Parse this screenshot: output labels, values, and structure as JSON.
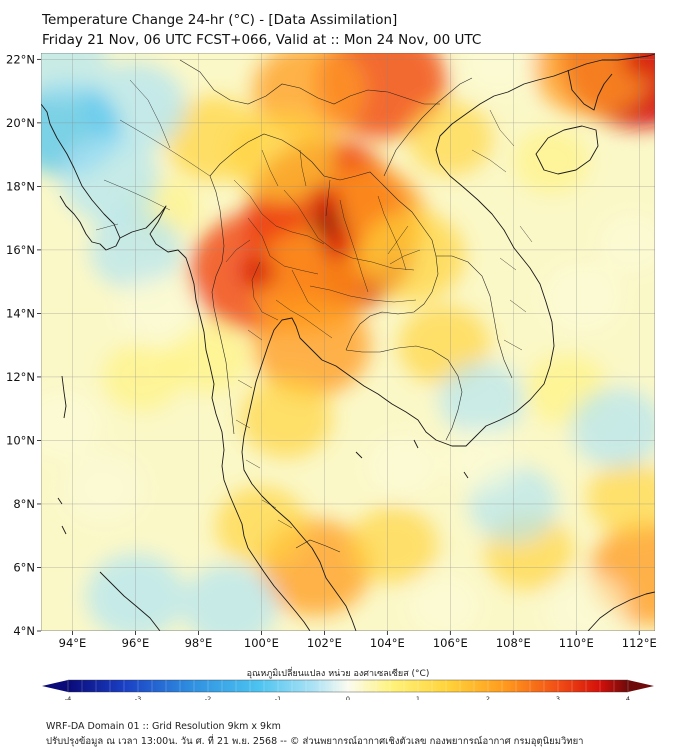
{
  "header": {
    "title": "Temperature Change 24-hr (°C) - [Data Assimilation]",
    "subtitle": "Friday 21 Nov, 06 UTC FCST+066, Valid at :: Mon 24 Nov, 00 UTC"
  },
  "map": {
    "lat_labels": [
      "22°N",
      "20°N",
      "18°N",
      "16°N",
      "14°N",
      "12°N",
      "10°N",
      "8°N",
      "6°N",
      "4°N"
    ],
    "lon_labels": [
      "94°E",
      "96°E",
      "98°E",
      "100°E",
      "102°E",
      "104°E",
      "106°E",
      "108°E",
      "110°E",
      "112°E"
    ],
    "lat_values": [
      22,
      20,
      18,
      16,
      14,
      12,
      10,
      8,
      6,
      4
    ],
    "lon_values": [
      94,
      96,
      98,
      100,
      102,
      104,
      106,
      108,
      110,
      112
    ],
    "extent": {
      "lon_min": 93.0,
      "lon_max": 112.5,
      "lat_min": 4.0,
      "lat_max": 22.2
    },
    "anomalies": [
      {
        "lon": 102.1,
        "lat": 16.9,
        "value": 3.2
      },
      {
        "lon": 102.4,
        "lat": 16.2,
        "value": 3.0
      },
      {
        "lon": 102.0,
        "lat": 17.5,
        "value": 2.7
      },
      {
        "lon": 99.9,
        "lat": 15.3,
        "value": 2.4
      },
      {
        "lon": 101.5,
        "lat": 15.0,
        "value": 1.8
      },
      {
        "lon": 103.3,
        "lat": 17.0,
        "value": 1.9
      },
      {
        "lon": 101.6,
        "lat": 13.0,
        "value": 1.8
      },
      {
        "lon": 103.8,
        "lat": 21.3,
        "value": 2.2
      },
      {
        "lon": 101.5,
        "lat": 21.0,
        "value": 1.6
      },
      {
        "lon": 112.0,
        "lat": 22.0,
        "value": 3.0
      },
      {
        "lon": 110.5,
        "lat": 21.8,
        "value": 1.8
      },
      {
        "lon": 98.5,
        "lat": 19.5,
        "value": 1.2
      },
      {
        "lon": 100.7,
        "lat": 18.9,
        "value": 1.4
      },
      {
        "lon": 104.8,
        "lat": 15.8,
        "value": 1.4
      },
      {
        "lon": 105.8,
        "lat": 13.0,
        "value": 1.0
      },
      {
        "lon": 100.8,
        "lat": 10.7,
        "value": 1.0
      },
      {
        "lon": 101.7,
        "lat": 6.0,
        "value": 1.6
      },
      {
        "lon": 100.0,
        "lat": 7.3,
        "value": 1.0
      },
      {
        "lon": 104.2,
        "lat": 6.7,
        "value": 0.9
      },
      {
        "lon": 108.5,
        "lat": 6.5,
        "value": 0.9
      },
      {
        "lon": 112.3,
        "lat": 5.8,
        "value": 1.8
      },
      {
        "lon": 111.7,
        "lat": 8.2,
        "value": 0.8
      },
      {
        "lon": 109.7,
        "lat": 11.6,
        "value": 0.7
      },
      {
        "lon": 98.3,
        "lat": 12.6,
        "value": 0.7
      },
      {
        "lon": 96.2,
        "lat": 12.0,
        "value": 0.6
      },
      {
        "lon": 96.9,
        "lat": 17.3,
        "value": 0.4
      },
      {
        "lon": 106.0,
        "lat": 19.5,
        "value": 0.8
      },
      {
        "lon": 109.2,
        "lat": 18.8,
        "value": 0.5
      },
      {
        "lon": 96.0,
        "lat": 20.5,
        "value": -1.3
      },
      {
        "lon": 93.8,
        "lat": 19.8,
        "value": -1.5
      },
      {
        "lon": 95.2,
        "lat": 18.2,
        "value": -1.2
      },
      {
        "lon": 96.0,
        "lat": 16.0,
        "value": -1.0
      },
      {
        "lon": 93.7,
        "lat": 22.0,
        "value": -0.9
      },
      {
        "lon": 96.7,
        "lat": 14.1,
        "value": -0.7
      },
      {
        "lon": 111.3,
        "lat": 10.4,
        "value": -1.0
      },
      {
        "lon": 107.0,
        "lat": 11.3,
        "value": -0.8
      },
      {
        "lon": 108.0,
        "lat": 8.0,
        "value": -0.9
      },
      {
        "lon": 107.0,
        "lat": 9.4,
        "value": -0.5
      },
      {
        "lon": 104.5,
        "lat": 9.2,
        "value": -0.4
      },
      {
        "lon": 96.0,
        "lat": 5.1,
        "value": -1.2
      },
      {
        "lon": 99.0,
        "lat": 4.8,
        "value": -1.1
      },
      {
        "lon": 95.0,
        "lat": 8.5,
        "value": -0.7
      },
      {
        "lon": 93.7,
        "lat": 10.5,
        "value": -0.6
      },
      {
        "lon": 110.2,
        "lat": 14.5,
        "value": -0.6
      },
      {
        "lon": 111.8,
        "lat": 16.2,
        "value": -0.3
      },
      {
        "lon": 107.5,
        "lat": 21.9,
        "value": -0.4
      },
      {
        "lon": 110.3,
        "lat": 4.7,
        "value": -0.7
      },
      {
        "lon": 105.8,
        "lat": 4.8,
        "value": -0.4
      }
    ]
  },
  "colorbar": {
    "label": "อุณหภูมิเปลี่ยนแปลง หน่วย องศาเซลเซียส (°C)",
    "min": -4,
    "max": 4,
    "ticks": [
      -4,
      -3,
      -2,
      -1,
      0,
      1,
      2,
      3,
      4
    ],
    "tick_labels": [
      "-4",
      "-3",
      "-2",
      "-1",
      "0",
      "1",
      "2",
      "3",
      "4"
    ],
    "colors": [
      "#0a0a78",
      "#1a3fc4",
      "#2f8fe0",
      "#4cc3f0",
      "#aee3f5",
      "#fbfbd8",
      "#fff27a",
      "#ffd23a",
      "#ff9a1e",
      "#f04a14",
      "#d4100a",
      "#6e0a0a"
    ]
  },
  "footer": {
    "line1": "WRF-DA Domain 01 :: Grid Resolution 9km x 9km",
    "line2": "ปรับปรุงข้อมูล ณ เวลา 13:00น. วัน ศ. ที่ 21 พ.ย. 2568 -- © ส่วนพยากรณ์อากาศเชิงตัวเลข กองพยากรณ์อากาศ กรมอุตุนิยมวิทยา"
  }
}
